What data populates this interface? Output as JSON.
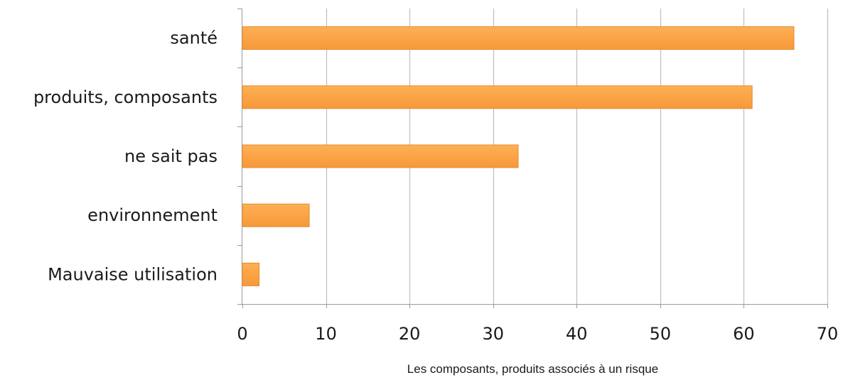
{
  "chart_data": {
    "type": "bar",
    "orientation": "horizontal",
    "title": "",
    "xlabel": "Les composants, produits associés à un risque",
    "ylabel": "",
    "categories": [
      "santé",
      "produits, composants",
      "ne sait pas",
      "environnement",
      "Mauvaise utilisation"
    ],
    "values": [
      66,
      61,
      33,
      8,
      2
    ],
    "xlim": [
      0,
      70
    ],
    "xticks": [
      0,
      10,
      20,
      30,
      40,
      50,
      60,
      70
    ],
    "grid": true,
    "legend": "none",
    "colors": {
      "bar": "#FBA446",
      "bar_edge": "#E58A2C",
      "grid": "#BEBEBE",
      "axis": "#9A9A9A"
    }
  }
}
